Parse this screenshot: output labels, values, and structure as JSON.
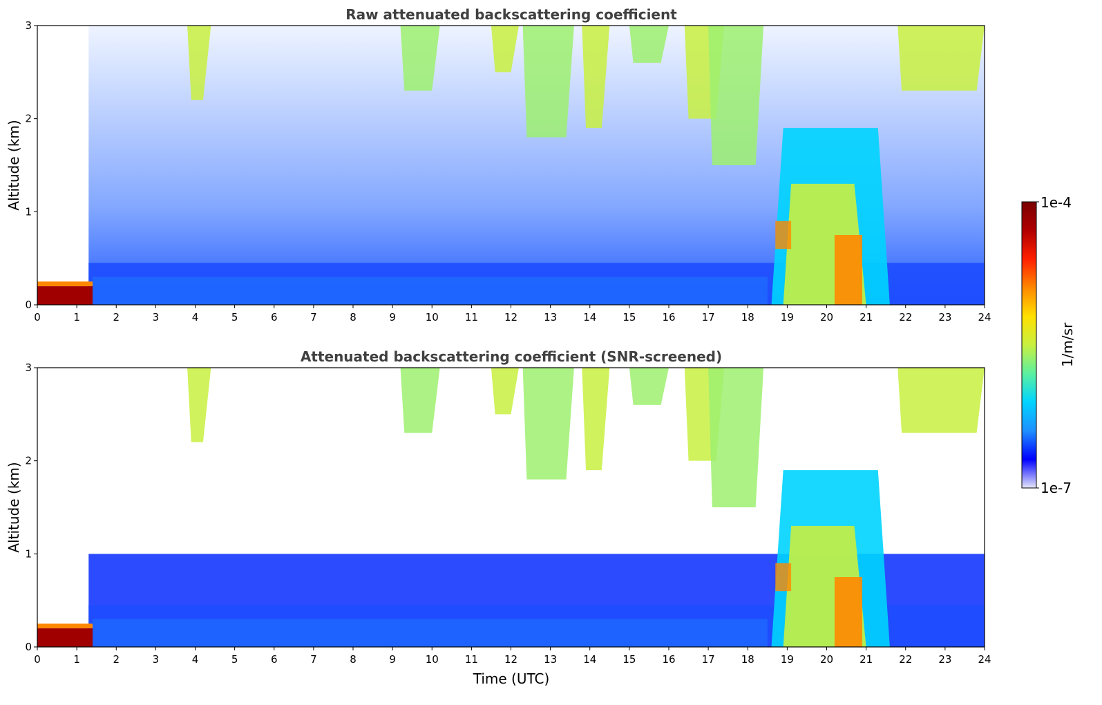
{
  "chart_data": [
    {
      "type": "heatmap",
      "title": "Raw attenuated backscattering coefficient",
      "xlabel": "",
      "ylabel": "Altitude (km)",
      "xlim": [
        0,
        24
      ],
      "ylim": [
        0,
        3
      ],
      "xticks": [
        "0",
        "1",
        "2",
        "3",
        "4",
        "5",
        "6",
        "7",
        "8",
        "9",
        "10",
        "11",
        "12",
        "13",
        "14",
        "15",
        "16",
        "17",
        "18",
        "19",
        "20",
        "21",
        "22",
        "23",
        "24"
      ],
      "yticks": [
        "0",
        "1",
        "2",
        "3"
      ],
      "screened": false
    },
    {
      "type": "heatmap",
      "title": "Attenuated backscattering coefficient (SNR-screened)",
      "xlabel": "Time (UTC)",
      "ylabel": "Altitude (km)",
      "xlim": [
        0,
        24
      ],
      "ylim": [
        0,
        3
      ],
      "xticks": [
        "0",
        "1",
        "2",
        "3",
        "4",
        "5",
        "6",
        "7",
        "8",
        "9",
        "10",
        "11",
        "12",
        "13",
        "14",
        "15",
        "16",
        "17",
        "18",
        "19",
        "20",
        "21",
        "22",
        "23",
        "24"
      ],
      "yticks": [
        "0",
        "1",
        "2",
        "3"
      ],
      "screened": true
    }
  ],
  "colorbar": {
    "label": "1/m/sr",
    "max_label": "1e-4",
    "min_label": "1e-7",
    "colormap": [
      "#e6e6fa",
      "#0000ff",
      "#1e90ff",
      "#00d4ff",
      "#5cf0a0",
      "#c8f040",
      "#ffe000",
      "#ff8800",
      "#ff2000",
      "#b00000",
      "#7a0000"
    ]
  },
  "features": {
    "surface_aerosol_layer_top_km": 0.45,
    "boundary_layer_top_km": 1.0,
    "precipitation_band_utc": [
      18.6,
      21.6
    ],
    "precipitation_top_km": 1.9
  }
}
